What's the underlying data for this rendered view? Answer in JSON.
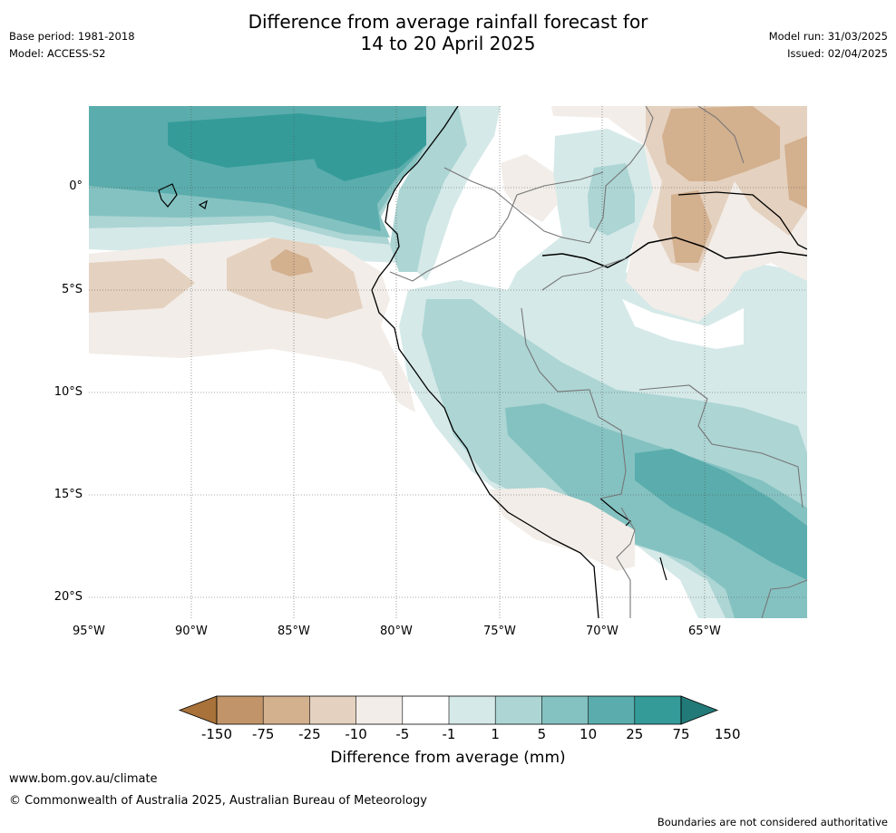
{
  "header": {
    "base_period": "Base period: 1981-2018",
    "model": "Model: ACCESS-S2",
    "title_line1": "Difference from average rainfall forecast for",
    "title_line2": "14 to 20 April 2025",
    "model_run": "Model run: 31/03/2025",
    "issued": "Issued: 02/04/2025"
  },
  "map": {
    "lat_labels": [
      "0°",
      "5°S",
      "10°S",
      "15°S",
      "20°S"
    ],
    "lon_labels": [
      "95°W",
      "90°W",
      "85°W",
      "80°W",
      "75°W",
      "70°W",
      "65°W"
    ],
    "region": "Eastern Pacific / western South America"
  },
  "colorbar": {
    "label": "Difference from average (mm)",
    "ticks": [
      "-150",
      "-75",
      "-25",
      "-10",
      "-5",
      "-1",
      "1",
      "5",
      "10",
      "25",
      "75",
      "150"
    ],
    "colors": [
      "#a8723a",
      "#c29469",
      "#d3b08e",
      "#e4d1bf",
      "#f2ede8",
      "#ffffff",
      "#d5e9e8",
      "#acd5d4",
      "#84c2c1",
      "#5aadac",
      "#349b99",
      "#227a78"
    ]
  },
  "footer": {
    "url": "www.bom.gov.au/climate",
    "copyright": "© Commonwealth of Australia 2025, Australian Bureau of Meteorology",
    "note": "Boundaries are not considered authoritative"
  }
}
